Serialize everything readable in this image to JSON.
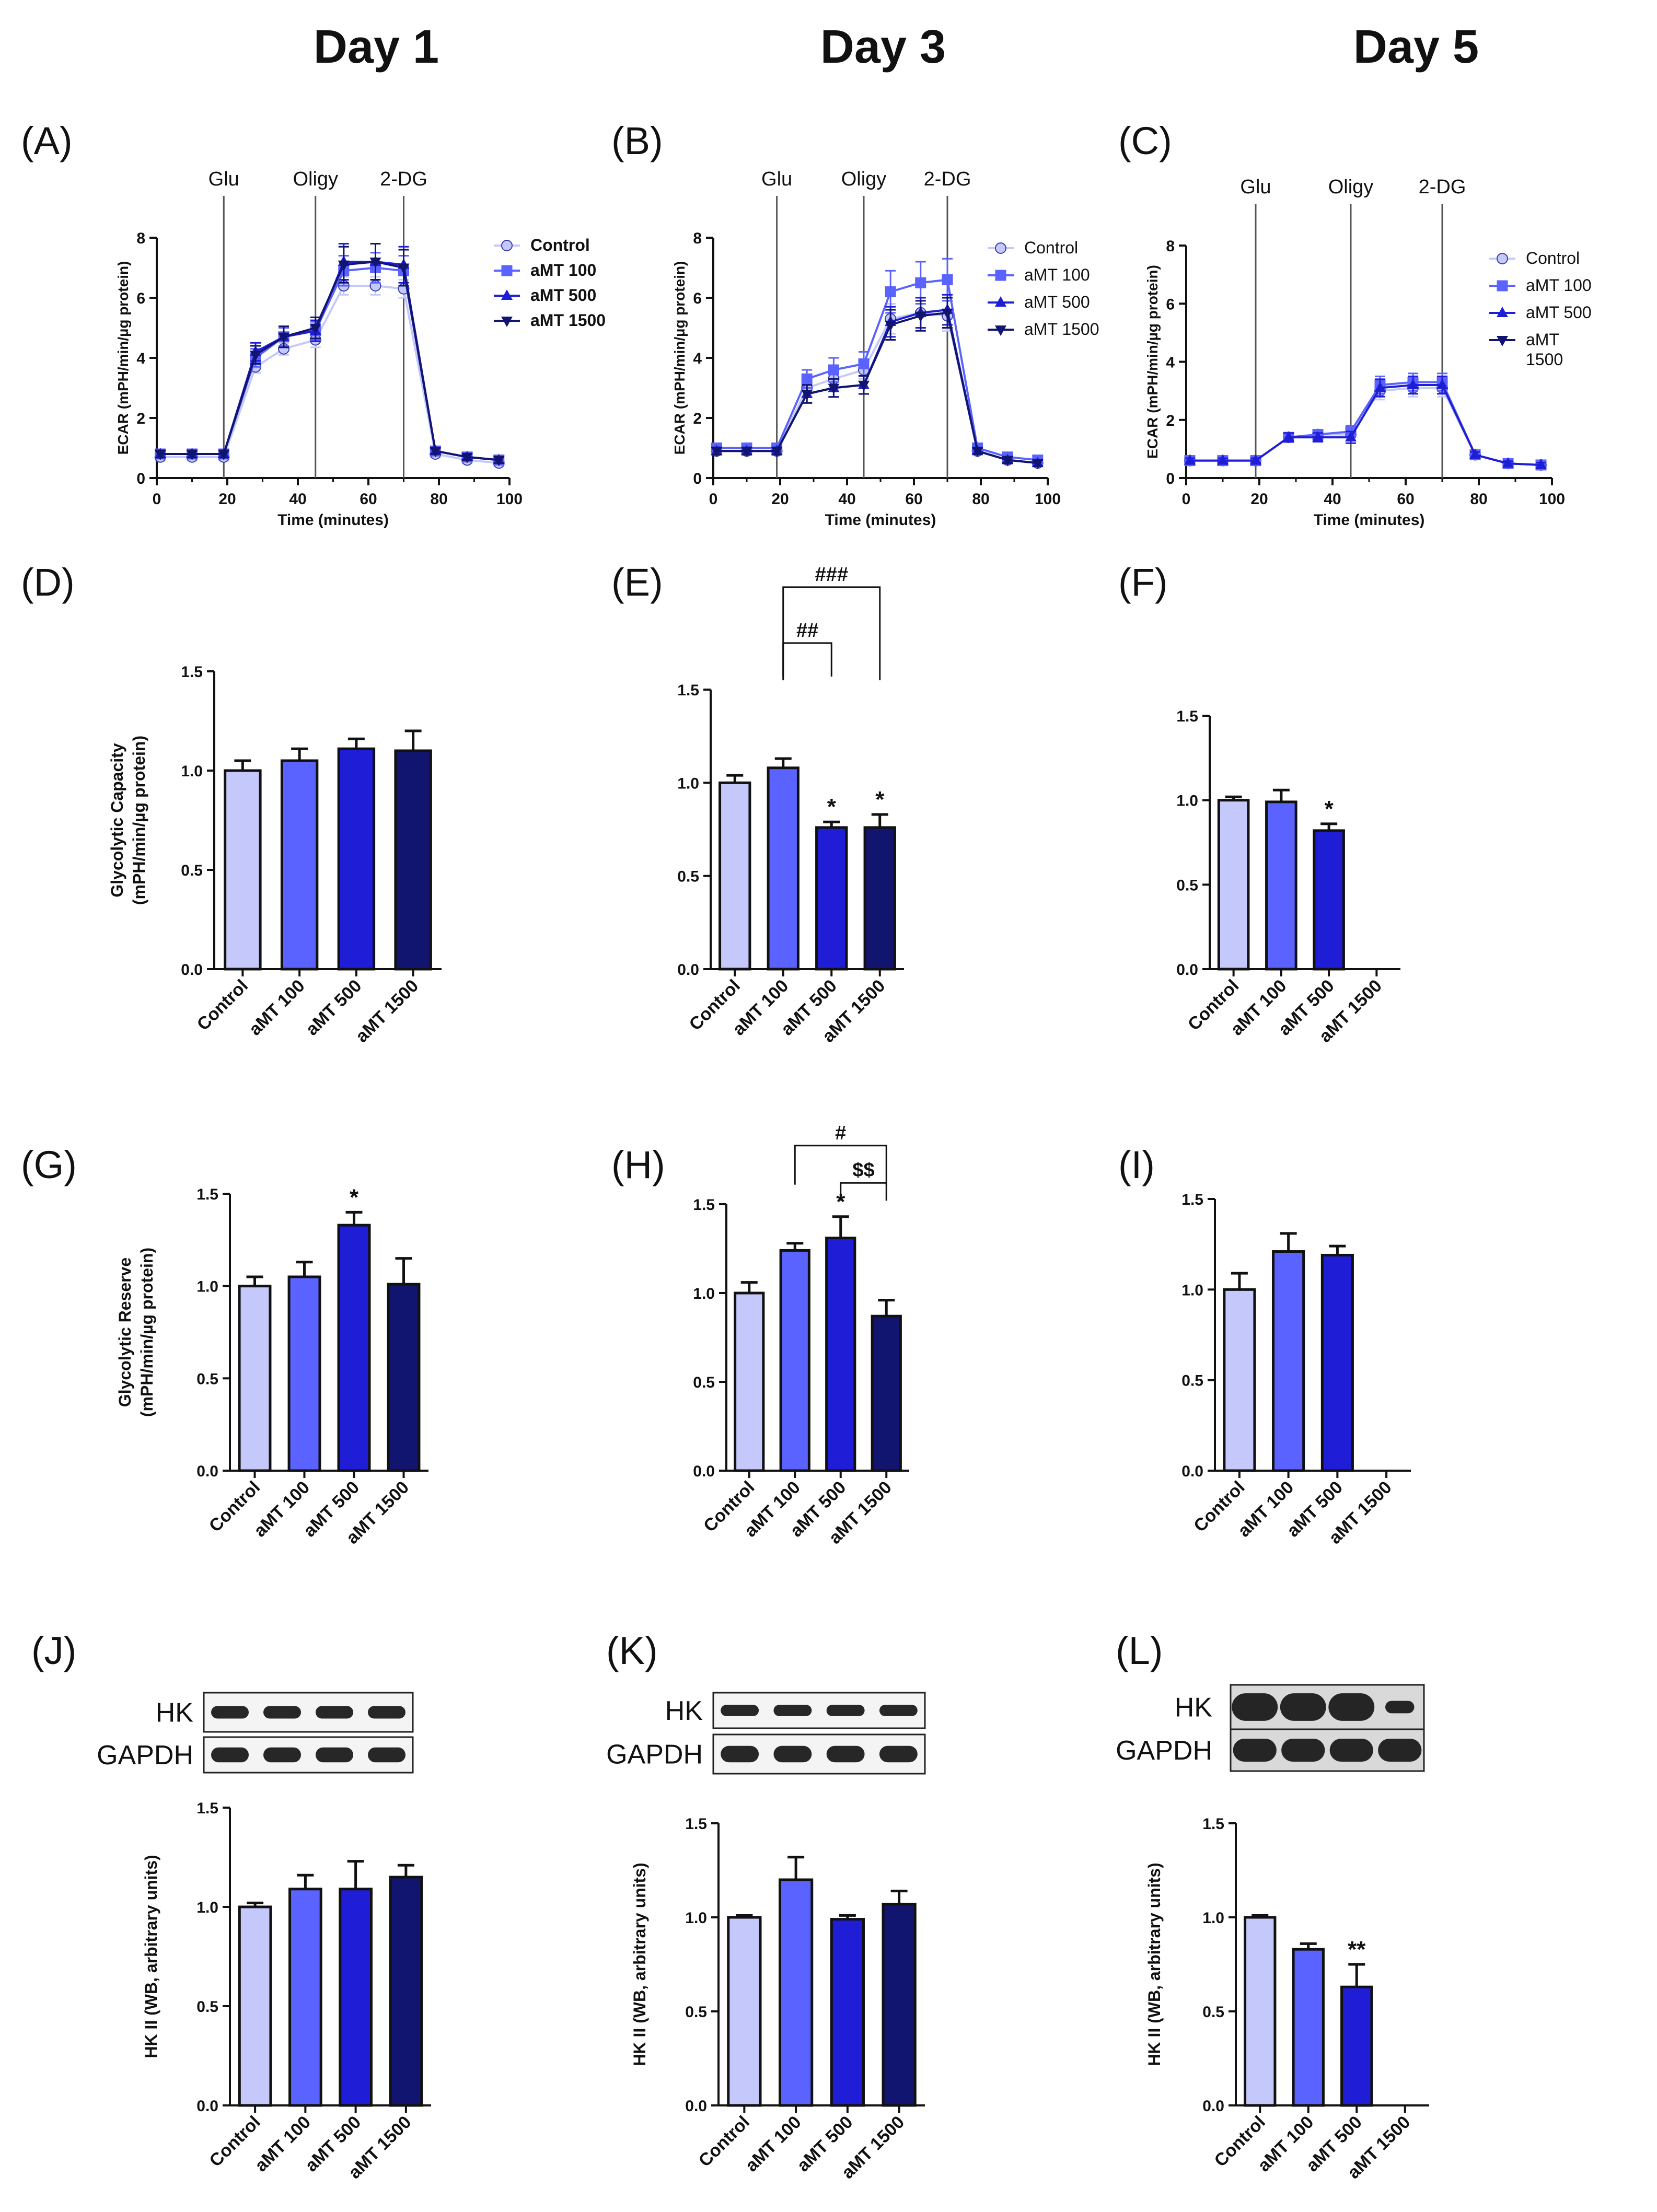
{
  "headers": [
    "Day 1",
    "Day 3",
    "Day 5"
  ],
  "colors": {
    "Control": "#c4c8fb",
    "aMT 100": "#5a62ff",
    "aMT 500": "#1f1ed6",
    "aMT 1500": "#121570",
    "axis": "#111111"
  },
  "chart_data": [
    {
      "id": "A",
      "type": "line",
      "panel_label": "(A)",
      "xlabel": "Time (minutes)",
      "ylabel": "ECAR (mPH/min/µg protein)",
      "xlim": [
        0,
        100
      ],
      "ylim": [
        0,
        8
      ],
      "xticks": [
        "0",
        "20",
        "40",
        "60",
        "80",
        "100"
      ],
      "yticks": [
        "0",
        "2",
        "4",
        "6",
        "8"
      ],
      "markers": [
        {
          "label": "Glu",
          "x": 19
        },
        {
          "label": "Oligy",
          "x": 45
        },
        {
          "label": "2-DG",
          "x": 70
        }
      ],
      "legend_bold": true,
      "x": [
        1,
        10,
        19,
        28,
        36,
        45,
        53,
        62,
        70,
        79,
        88,
        97
      ],
      "series": [
        {
          "name": "Control",
          "values": [
            0.7,
            0.7,
            0.7,
            3.7,
            4.3,
            4.6,
            6.4,
            6.4,
            6.3,
            0.8,
            0.6,
            0.5
          ],
          "err": [
            0.12,
            0.12,
            0.12,
            0.2,
            0.2,
            0.25,
            0.3,
            0.3,
            0.3,
            0.1,
            0.1,
            0.1
          ]
        },
        {
          "name": "aMT 100",
          "values": [
            0.8,
            0.8,
            0.8,
            4.0,
            4.7,
            4.9,
            6.9,
            7.0,
            6.9,
            0.9,
            0.7,
            0.6
          ],
          "err": [
            0.12,
            0.12,
            0.12,
            0.3,
            0.3,
            0.3,
            0.5,
            0.5,
            0.5,
            0.1,
            0.1,
            0.1
          ]
        },
        {
          "name": "aMT 500",
          "values": [
            0.8,
            0.8,
            0.8,
            4.2,
            4.7,
            4.9,
            7.2,
            7.2,
            7.1,
            0.9,
            0.7,
            0.6
          ],
          "err": [
            0.12,
            0.12,
            0.12,
            0.3,
            0.35,
            0.35,
            0.6,
            0.6,
            0.6,
            0.1,
            0.1,
            0.1
          ]
        },
        {
          "name": "aMT 1500",
          "values": [
            0.8,
            0.8,
            0.8,
            4.1,
            4.7,
            5.0,
            7.1,
            7.2,
            7.0,
            0.9,
            0.7,
            0.6
          ],
          "err": [
            0.12,
            0.12,
            0.12,
            0.3,
            0.35,
            0.35,
            0.6,
            0.6,
            0.6,
            0.1,
            0.1,
            0.1
          ]
        }
      ]
    },
    {
      "id": "B",
      "type": "line",
      "panel_label": "(B)",
      "xlabel": "Time (minutes)",
      "ylabel": "ECAR (mPH/min/µg protein)",
      "xlim": [
        0,
        100
      ],
      "ylim": [
        0,
        8
      ],
      "xticks": [
        "0",
        "20",
        "40",
        "60",
        "80",
        "100"
      ],
      "yticks": [
        "0",
        "2",
        "4",
        "6",
        "8"
      ],
      "markers": [
        {
          "label": "Glu",
          "x": 19
        },
        {
          "label": "Oligy",
          "x": 45
        },
        {
          "label": "2-DG",
          "x": 70
        }
      ],
      "legend_bold": false,
      "x": [
        1,
        10,
        19,
        28,
        36,
        45,
        53,
        62,
        70,
        79,
        88,
        97
      ],
      "series": [
        {
          "name": "Control",
          "values": [
            0.9,
            0.9,
            0.9,
            3.0,
            3.3,
            3.6,
            5.3,
            5.5,
            5.4,
            0.9,
            0.6,
            0.5
          ],
          "err": [
            0.12,
            0.12,
            0.12,
            0.25,
            0.3,
            0.3,
            0.5,
            0.5,
            0.5,
            0.1,
            0.1,
            0.1
          ]
        },
        {
          "name": "aMT 100",
          "values": [
            1.0,
            1.0,
            1.0,
            3.3,
            3.6,
            3.8,
            6.2,
            6.5,
            6.6,
            1.0,
            0.7,
            0.6
          ],
          "err": [
            0.15,
            0.15,
            0.15,
            0.3,
            0.4,
            0.4,
            0.7,
            0.7,
            0.7,
            0.15,
            0.1,
            0.1
          ]
        },
        {
          "name": "aMT 500",
          "values": [
            0.9,
            0.9,
            0.9,
            2.8,
            3.0,
            3.1,
            5.2,
            5.5,
            5.6,
            0.9,
            0.6,
            0.5
          ],
          "err": [
            0.12,
            0.12,
            0.12,
            0.3,
            0.3,
            0.3,
            0.5,
            0.5,
            0.5,
            0.1,
            0.1,
            0.1
          ]
        },
        {
          "name": "aMT 1500",
          "values": [
            0.9,
            0.9,
            0.9,
            2.8,
            3.0,
            3.1,
            5.1,
            5.4,
            5.5,
            0.9,
            0.6,
            0.5
          ],
          "err": [
            0.12,
            0.12,
            0.12,
            0.3,
            0.3,
            0.3,
            0.5,
            0.5,
            0.5,
            0.1,
            0.1,
            0.1
          ]
        }
      ]
    },
    {
      "id": "C",
      "type": "line",
      "panel_label": "(C)",
      "xlabel": "Time (minutes)",
      "ylabel": "ECAR (mPH/min/µg protein)",
      "xlim": [
        0,
        100
      ],
      "ylim": [
        0,
        8
      ],
      "xticks": [
        "0",
        "20",
        "40",
        "60",
        "80",
        "100"
      ],
      "yticks": [
        "0",
        "2",
        "4",
        "6",
        "8"
      ],
      "markers": [
        {
          "label": "Glu",
          "x": 19
        },
        {
          "label": "Oligy",
          "x": 45
        },
        {
          "label": "2-DG",
          "x": 70
        }
      ],
      "legend_bold": false,
      "x": [
        1,
        10,
        19,
        28,
        36,
        45,
        53,
        62,
        70,
        79,
        88,
        97
      ],
      "series": [
        {
          "name": "Control",
          "values": [
            0.6,
            0.6,
            0.6,
            1.4,
            1.5,
            1.5,
            3.0,
            3.1,
            3.1,
            0.8,
            0.5,
            0.45
          ],
          "err": [
            0.08,
            0.08,
            0.08,
            0.15,
            0.15,
            0.2,
            0.3,
            0.3,
            0.3,
            0.1,
            0.08,
            0.08
          ]
        },
        {
          "name": "aMT 100",
          "values": [
            0.6,
            0.6,
            0.6,
            1.4,
            1.5,
            1.6,
            3.2,
            3.3,
            3.3,
            0.8,
            0.5,
            0.45
          ],
          "err": [
            0.08,
            0.08,
            0.08,
            0.15,
            0.15,
            0.2,
            0.3,
            0.3,
            0.3,
            0.1,
            0.08,
            0.08
          ]
        },
        {
          "name": "aMT 500",
          "values": [
            0.6,
            0.6,
            0.6,
            1.4,
            1.4,
            1.4,
            3.1,
            3.2,
            3.2,
            0.8,
            0.5,
            0.45
          ],
          "err": [
            0.08,
            0.08,
            0.08,
            0.15,
            0.15,
            0.2,
            0.3,
            0.3,
            0.3,
            0.1,
            0.08,
            0.08
          ]
        }
      ],
      "legend_only": [
        "aMT 1500"
      ]
    },
    {
      "id": "D",
      "type": "bar",
      "panel_label": "(D)",
      "ylabel": [
        "Glycolytic Capacity",
        "(mPH/min/µg protein)"
      ],
      "ylim": [
        0,
        1.5
      ],
      "yticks": [
        "0.0",
        "0.5",
        "1.0",
        "1.5"
      ],
      "categories": [
        "Control",
        "aMT 100",
        "aMT 500",
        "aMT 1500"
      ],
      "values": [
        1.0,
        1.05,
        1.11,
        1.1
      ],
      "err": [
        0.05,
        0.06,
        0.05,
        0.1
      ],
      "stars": [
        "",
        "",
        "",
        ""
      ],
      "brackets": []
    },
    {
      "id": "E",
      "type": "bar",
      "panel_label": "(E)",
      "ylabel": [],
      "ylim": [
        0,
        1.5
      ],
      "yticks": [
        "0.0",
        "0.5",
        "1.0",
        "1.5"
      ],
      "categories": [
        "Control",
        "aMT 100",
        "aMT 500",
        "aMT 1500"
      ],
      "values": [
        1.0,
        1.08,
        0.76,
        0.76
      ],
      "err": [
        0.04,
        0.05,
        0.03,
        0.07
      ],
      "stars": [
        "",
        "",
        "*",
        "*"
      ],
      "brackets": [
        {
          "from": 1,
          "to": 2,
          "y": 1.75,
          "drop": 0.18,
          "label": "##"
        },
        {
          "from": 1,
          "to": 3,
          "y": 2.05,
          "drop": 0.5,
          "label": "###"
        }
      ]
    },
    {
      "id": "F",
      "type": "bar",
      "panel_label": "(F)",
      "ylabel": [],
      "ylim": [
        0,
        1.5
      ],
      "yticks": [
        "0.0",
        "0.5",
        "1.0",
        "1.5"
      ],
      "categories": [
        "Control",
        "aMT 100",
        "aMT 500",
        "aMT 1500"
      ],
      "values": [
        1.0,
        0.99,
        0.82,
        null
      ],
      "err": [
        0.02,
        0.07,
        0.04,
        0
      ],
      "stars": [
        "",
        "",
        "*",
        ""
      ],
      "brackets": []
    },
    {
      "id": "G",
      "type": "bar",
      "panel_label": "(G)",
      "ylabel": [
        "Glycolytic Reserve",
        "(mPH/min/µg protein)"
      ],
      "ylim": [
        0,
        1.5
      ],
      "yticks": [
        "0.0",
        "0.5",
        "1.0",
        "1.5"
      ],
      "categories": [
        "Control",
        "aMT 100",
        "aMT 500",
        "aMT 1500"
      ],
      "values": [
        1.0,
        1.05,
        1.33,
        1.01
      ],
      "err": [
        0.05,
        0.08,
        0.07,
        0.14
      ],
      "stars": [
        "",
        "",
        "*",
        ""
      ],
      "brackets": []
    },
    {
      "id": "H",
      "type": "bar",
      "panel_label": "(H)",
      "ylabel": [],
      "ylim": [
        0,
        1.5
      ],
      "yticks": [
        "0.0",
        "0.5",
        "1.0",
        "1.5"
      ],
      "categories": [
        "Control",
        "aMT 100",
        "aMT 500",
        "aMT 1500"
      ],
      "values": [
        1.0,
        1.24,
        1.31,
        0.87
      ],
      "err": [
        0.06,
        0.04,
        0.12,
        0.09
      ],
      "stars": [
        "",
        "",
        "*",
        ""
      ],
      "brackets": [
        {
          "from": 1,
          "to": 3,
          "y": 1.83,
          "drop": 0.22,
          "label": "#"
        },
        {
          "from": 2,
          "to": 3,
          "y": 1.62,
          "drop": 0.1,
          "label": "$$"
        }
      ]
    },
    {
      "id": "I",
      "type": "bar",
      "panel_label": "(I)",
      "ylabel": [],
      "ylim": [
        0,
        1.5
      ],
      "yticks": [
        "0.0",
        "0.5",
        "1.0",
        "1.5"
      ],
      "categories": [
        "Control",
        "aMT 100",
        "aMT 500",
        "aMT 1500"
      ],
      "values": [
        1.0,
        1.21,
        1.19,
        null
      ],
      "err": [
        0.09,
        0.1,
        0.05,
        0
      ],
      "stars": [
        "",
        "",
        "",
        ""
      ],
      "brackets": []
    },
    {
      "id": "J",
      "type": "bar",
      "panel_label": "(J)",
      "ylabel": [
        "HK II (WB, arbitrary units)"
      ],
      "ylim": [
        0,
        1.5
      ],
      "yticks": [
        "0.0",
        "0.5",
        "1.0",
        "1.5"
      ],
      "categories": [
        "Control",
        "aMT 100",
        "aMT 500",
        "aMT 1500"
      ],
      "values": [
        1.0,
        1.09,
        1.09,
        1.15
      ],
      "err": [
        0.02,
        0.07,
        0.14,
        0.06
      ],
      "stars": [
        "",
        "",
        "",
        ""
      ],
      "brackets": [],
      "blot_labels": [
        "HK",
        "GAPDH"
      ]
    },
    {
      "id": "K",
      "type": "bar",
      "panel_label": "(K)",
      "ylabel": [
        "HK II (WB, arbitrary units)"
      ],
      "ylim": [
        0,
        1.5
      ],
      "yticks": [
        "0.0",
        "0.5",
        "1.0",
        "1.5"
      ],
      "categories": [
        "Control",
        "aMT 100",
        "aMT 500",
        "aMT 1500"
      ],
      "values": [
        1.0,
        1.2,
        0.99,
        1.07
      ],
      "err": [
        0.01,
        0.12,
        0.02,
        0.07
      ],
      "stars": [
        "",
        "",
        "",
        ""
      ],
      "brackets": [],
      "blot_labels": [
        "HK",
        "GAPDH"
      ]
    },
    {
      "id": "L",
      "type": "bar",
      "panel_label": "(L)",
      "ylabel": [
        "HK II (WB, arbitrary units)"
      ],
      "ylim": [
        0,
        1.5
      ],
      "yticks": [
        "0.0",
        "0.5",
        "1.0",
        "1.5"
      ],
      "categories": [
        "Control",
        "aMT 100",
        "aMT 500",
        "aMT 1500"
      ],
      "values": [
        1.0,
        0.83,
        0.63,
        null
      ],
      "err": [
        0.01,
        0.03,
        0.12,
        0
      ],
      "stars": [
        "",
        "",
        "**",
        ""
      ],
      "brackets": [],
      "blot_labels": [
        "HK",
        "GAPDH"
      ]
    }
  ]
}
